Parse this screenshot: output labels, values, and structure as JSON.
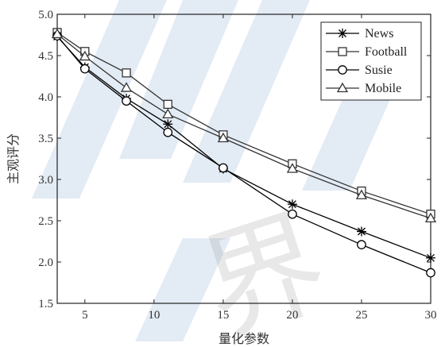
{
  "chart_data": {
    "type": "line",
    "xlabel": "量化参数",
    "ylabel": "主观评分",
    "xlim": [
      3,
      30
    ],
    "ylim": [
      1.5,
      5.0
    ],
    "xticks": [
      5,
      10,
      15,
      20,
      25,
      30
    ],
    "yticks": [
      1.5,
      2.0,
      2.5,
      3.0,
      3.5,
      4.0,
      4.5,
      5.0
    ],
    "ytick_labels": [
      "1.5",
      "2.0",
      "2.5",
      "3.0",
      "3.5",
      "4.0",
      "4.5",
      "5.0"
    ],
    "grid": false,
    "legend_position": "top-right",
    "series": [
      {
        "name": "News",
        "marker": "star",
        "color": "#000000",
        "x": [
          3,
          5,
          8,
          11,
          15,
          20,
          25,
          30
        ],
        "y": [
          4.73,
          4.36,
          3.98,
          3.67,
          3.13,
          2.7,
          2.37,
          2.05
        ]
      },
      {
        "name": "Football",
        "marker": "square",
        "color": "#333333",
        "x": [
          3,
          5,
          8,
          11,
          15,
          20,
          25,
          30
        ],
        "y": [
          4.78,
          4.55,
          4.29,
          3.91,
          3.54,
          3.19,
          2.86,
          2.58
        ]
      },
      {
        "name": "Susie",
        "marker": "circle",
        "color": "#000000",
        "x": [
          3,
          5,
          8,
          11,
          15,
          20,
          25,
          30
        ],
        "y": [
          4.74,
          4.34,
          3.95,
          3.57,
          3.14,
          2.58,
          2.21,
          1.87
        ]
      },
      {
        "name": "Mobile",
        "marker": "triangle",
        "color": "#333333",
        "x": [
          3,
          5,
          8,
          11,
          15,
          20,
          25,
          30
        ],
        "y": [
          4.76,
          4.49,
          4.11,
          3.79,
          3.5,
          3.13,
          2.81,
          2.53
        ]
      }
    ]
  },
  "watermark": {
    "text": "界"
  }
}
